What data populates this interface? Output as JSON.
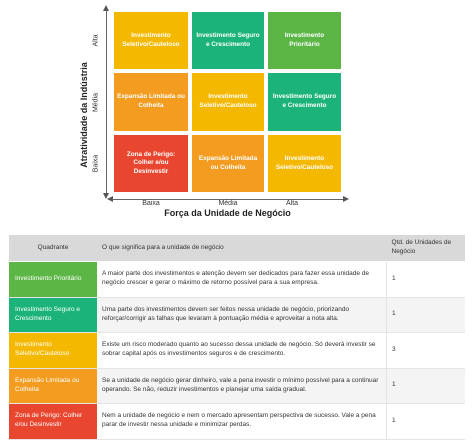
{
  "matrix": {
    "y_axis_title": "Atratividade da Indústria",
    "x_axis_title": "Força da Unidade de Negócio",
    "y_ticks": [
      "Alta",
      "Média",
      "Baixa"
    ],
    "x_ticks": [
      "Baixa",
      "Média",
      "Alta"
    ],
    "rows": [
      [
        {
          "label": "Investimento Seletivo/Cauteloso",
          "color": "#f5b800"
        },
        {
          "label": "Investimento Seguro e Crescimento",
          "color": "#1bb37a"
        },
        {
          "label": "Investimento Prioritário",
          "color": "#5cb646"
        }
      ],
      [
        {
          "label": "Expansão Limitada ou Colheita",
          "color": "#f39c1f"
        },
        {
          "label": "Investimento Seletivo/Cauteloso",
          "color": "#f5b800"
        },
        {
          "label": "Investimento Seguro e Crescimento",
          "color": "#1bb37a"
        }
      ],
      [
        {
          "label": "Zona de Perigo: Colher e/ou Desinvestir",
          "color": "#e8462f"
        },
        {
          "label": "Expansão Limitada ou Colheita",
          "color": "#f39c1f"
        },
        {
          "label": "Investimento Seletivo/Cauteloso",
          "color": "#f5b800"
        }
      ]
    ]
  },
  "table": {
    "headers": {
      "quadrant": "Quadrante",
      "meaning": "O que significa para a unidade de negócio",
      "count": "Qtd. de Unidades de Negócio"
    },
    "rows": [
      {
        "quadrant": "Investimento Prioritário",
        "color": "#5cb646",
        "meaning": "A maior parte dos investimentos e atenção devem ser dedicados para fazer essa unidade de negócio crescer e gerar o máximo de retorno possível para a sua empresa.",
        "count": "1"
      },
      {
        "quadrant": "Investimento Seguro e Crescimento",
        "color": "#1bb37a",
        "meaning": "Uma parte dos investimentos devem ser feitos nessa unidade de negócio, priorizando reforçar/corrigir as falhas que levaram à pontuação média e aproveitar a nota alta.",
        "count": "1"
      },
      {
        "quadrant": "Investimento Seletivo/Cauteloso",
        "color": "#f5b800",
        "meaning": "Existe um risco moderado quanto ao sucesso dessa unidade de negócio. Só deverá investir se sobrar capital após os investimentos seguros e de crescimento.",
        "count": "3"
      },
      {
        "quadrant": "Expansão Limitada ou Colheita",
        "color": "#f39c1f",
        "meaning": "Se a unidade de negócio gerar dinheiro, vale a pena investir o mínimo possível para a continuar operando. Se não, reduzir investimentos e planejar uma saída gradual.",
        "count": "1"
      },
      {
        "quadrant": "Zona de Perigo: Colher e/ou Desinvestir",
        "color": "#e8462f",
        "meaning": "Nem a unidade de negócio e nem o mercado apresentam perspectiva de sucesso. Vale a pena parar de investir nessa unidade e minimizar perdas.",
        "count": "1"
      }
    ]
  }
}
